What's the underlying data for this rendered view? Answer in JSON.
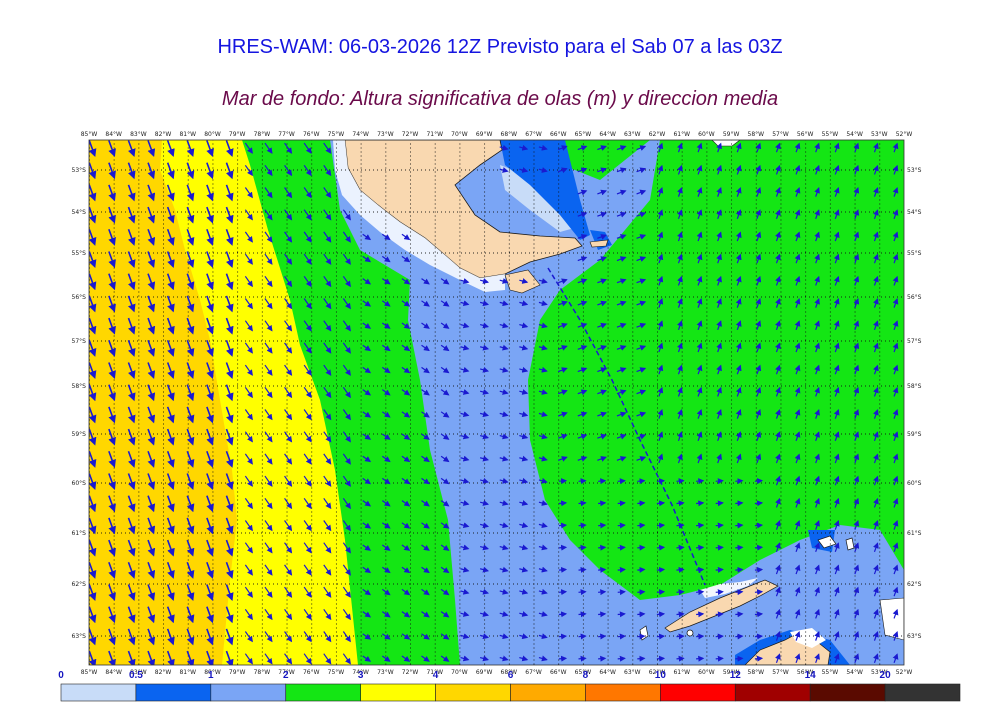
{
  "header": {
    "title": "HRES-WAM: 06-03-2026 12Z Previsto para el Sab 07 a las 03Z",
    "subtitle": "Mar de fondo: Altura significativa de olas (m) y direccion media"
  },
  "map": {
    "lon_labels": [
      "85°W",
      "84°W",
      "83°W",
      "82°W",
      "81°W",
      "80°W",
      "79°W",
      "78°W",
      "77°W",
      "76°W",
      "75°W",
      "74°W",
      "73°W",
      "72°W",
      "71°W",
      "70°W",
      "69°W",
      "68°W",
      "67°W",
      "66°W",
      "65°W",
      "64°W",
      "63°W",
      "62°W",
      "61°W",
      "60°W",
      "59°W",
      "58°W",
      "57°W",
      "56°W",
      "55°W",
      "54°W",
      "53°W",
      "52°W"
    ],
    "lat_labels": [
      "53°S",
      "54°S",
      "55°S",
      "56°S",
      "57°S",
      "58°S",
      "59°S",
      "60°S",
      "61°S",
      "62°S",
      "63°S"
    ],
    "colors": {
      "land": "#f9d8b0",
      "ice_white": "#ffffff",
      "border": "#1a1a1a",
      "arrow": "#1a1ad0",
      "grid_dot": "#111111",
      "route_line": "#1a1ad0"
    }
  },
  "colorbar": {
    "ticks": [
      "0",
      "0.5",
      "1",
      "2",
      "3",
      "4",
      "6",
      "8",
      "10",
      "12",
      "14",
      "20"
    ],
    "colors": [
      "#c8dcf8",
      "#0a64f0",
      "#7aa5f5",
      "#14e614",
      "#ffff00",
      "#ffd700",
      "#ffaa00",
      "#ff7700",
      "#ff0000",
      "#a00000",
      "#5a0a00",
      "#333333"
    ]
  }
}
